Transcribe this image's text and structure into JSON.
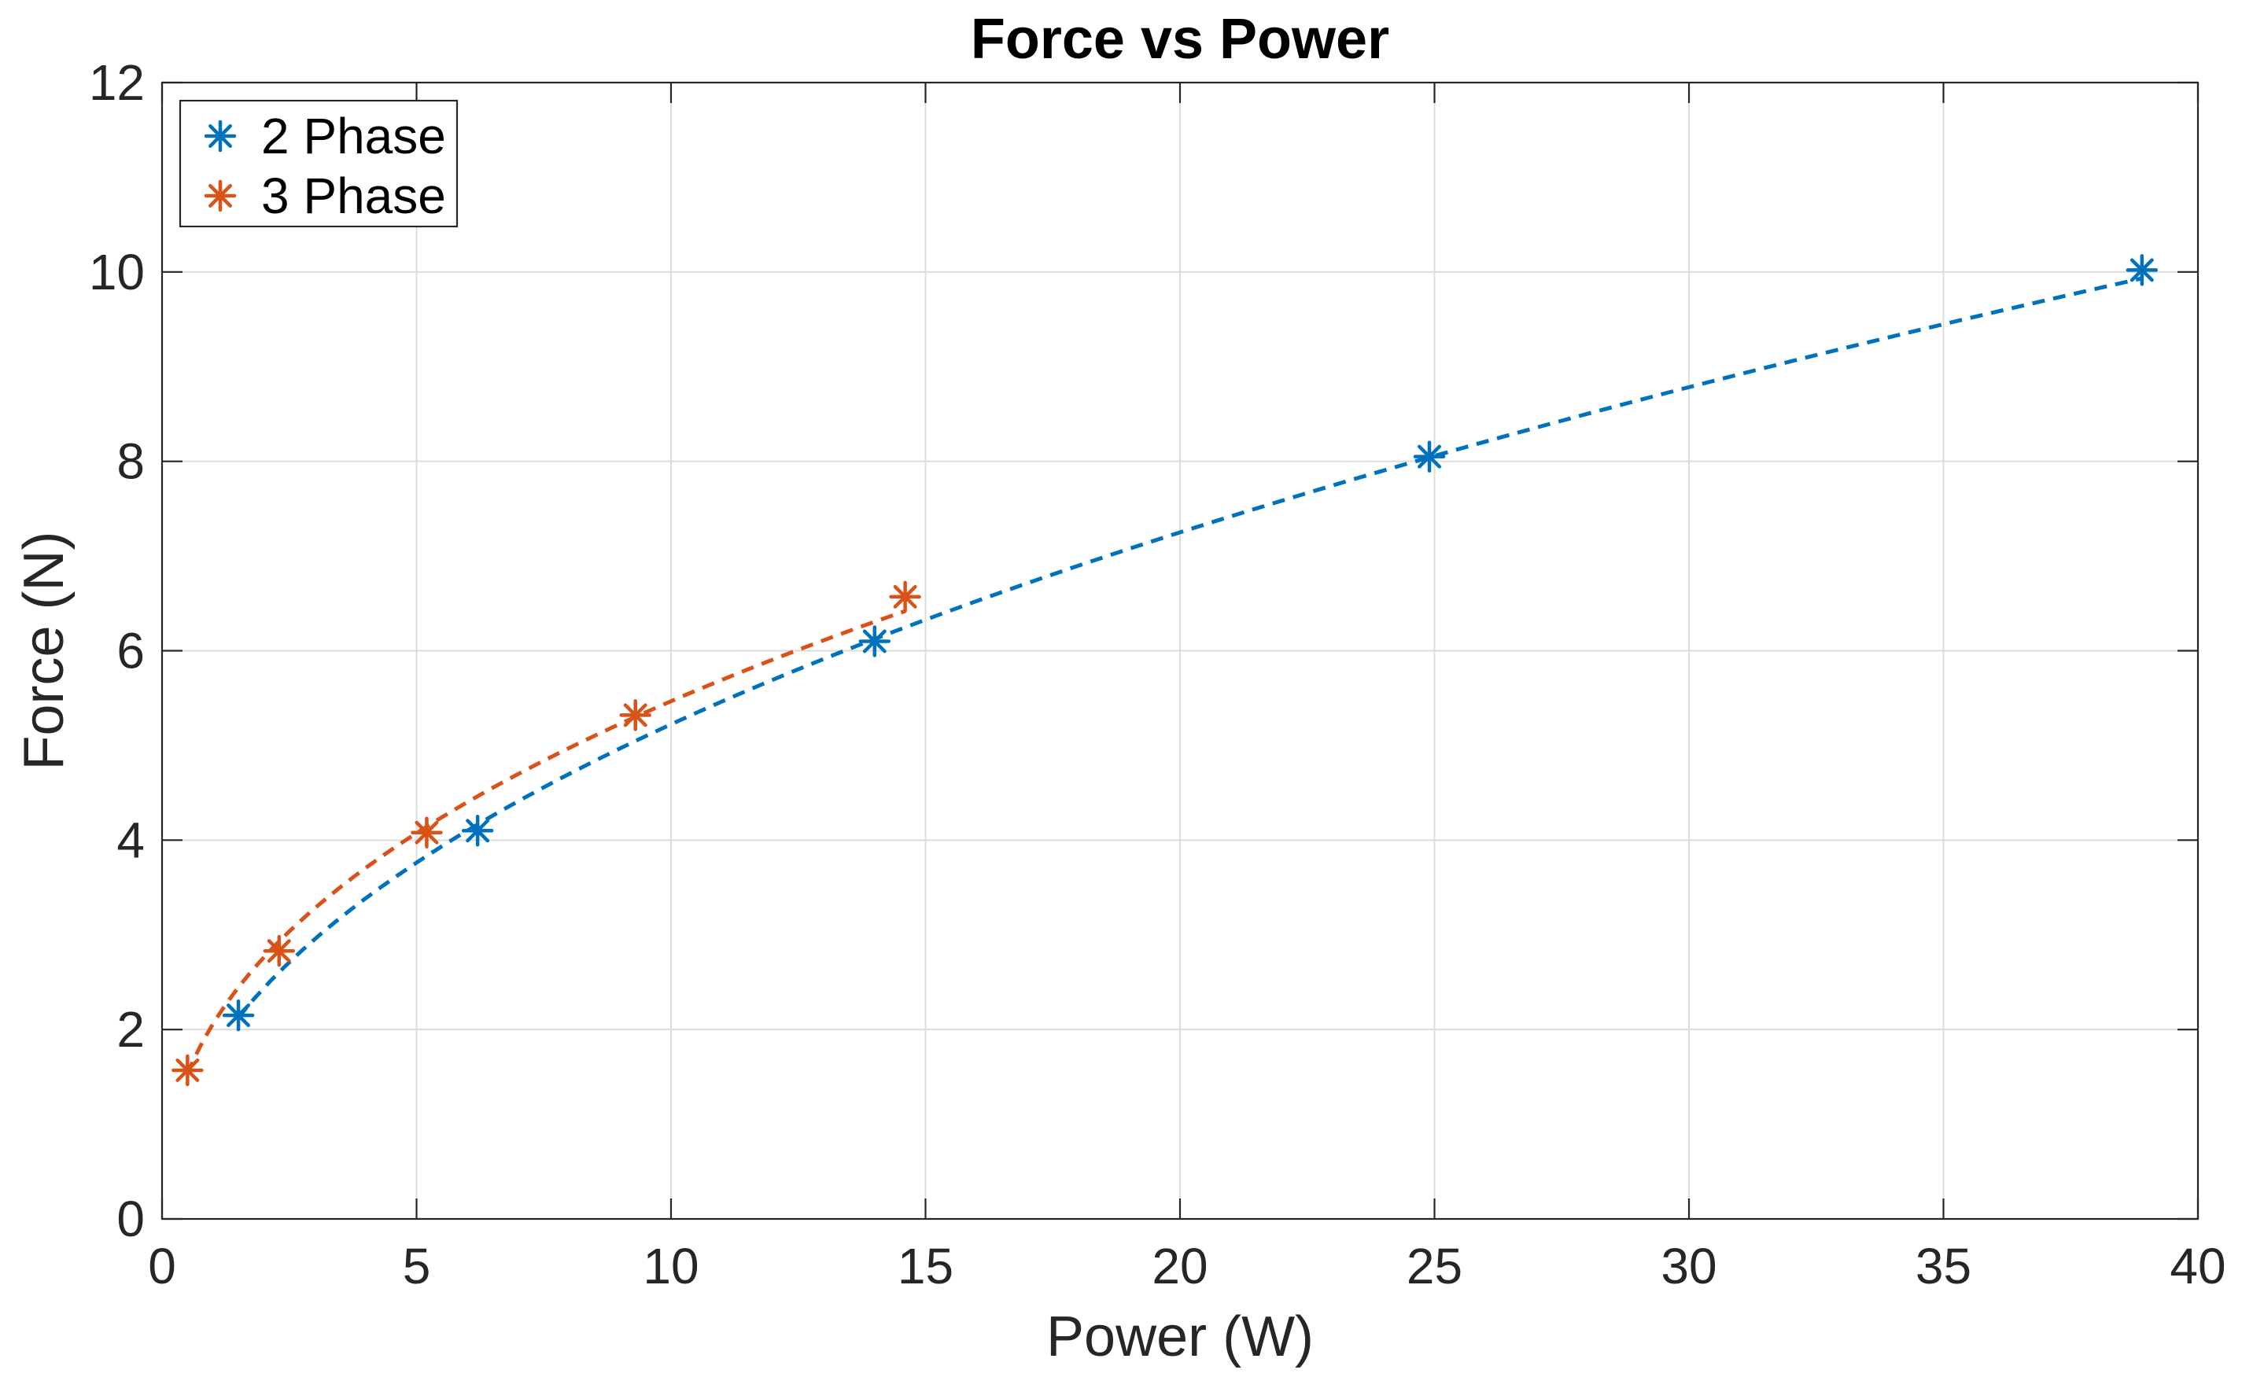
{
  "chart_data": {
    "type": "line",
    "title": "Force vs Power",
    "xlabel": "Power (W)",
    "ylabel": "Force (N)",
    "xlim": [
      0,
      40
    ],
    "ylim": [
      0,
      12
    ],
    "xticks": [
      0,
      5,
      10,
      15,
      20,
      25,
      30,
      35,
      40
    ],
    "yticks": [
      0,
      2,
      4,
      6,
      8,
      10,
      12
    ],
    "grid": true,
    "legend_position": "top-left",
    "series": [
      {
        "name": "2 Phase",
        "color": "#0072BD",
        "marker": "asterisk",
        "line_style": "dashed",
        "x": [
          1.5,
          6.2,
          14.0,
          24.9,
          38.9
        ],
        "y": [
          2.15,
          4.1,
          6.1,
          8.05,
          10.02
        ]
      },
      {
        "name": "3 Phase",
        "color": "#D95319",
        "marker": "asterisk",
        "line_style": "dashed",
        "x": [
          0.5,
          2.3,
          5.2,
          9.3,
          14.6
        ],
        "y": [
          1.57,
          2.83,
          4.08,
          5.32,
          6.57
        ]
      }
    ]
  }
}
